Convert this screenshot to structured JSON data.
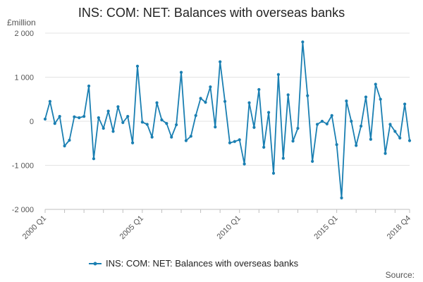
{
  "chart_data": {
    "type": "line",
    "title": "INS: COM: NET: Balances with overseas banks",
    "ylabel": "£million",
    "xlabel": "",
    "ylim": [
      -2000,
      2000
    ],
    "yticks": [
      -2000,
      -1000,
      0,
      1000,
      2000
    ],
    "ytick_labels": [
      "-2 000",
      "-1 000",
      "0",
      "1 000",
      "2 000"
    ],
    "x_tick_positions": [
      0,
      20,
      40,
      60,
      75
    ],
    "x_tick_labels": [
      "2000 Q1",
      "2005 Q1",
      "2010 Q1",
      "2015 Q1",
      "2018 Q4"
    ],
    "x_minor_tick_positions": [
      0,
      4,
      8,
      12,
      16,
      20,
      24,
      28,
      32,
      36,
      40,
      44,
      48,
      52,
      56,
      60,
      64,
      68,
      72,
      75
    ],
    "grid": "horizontal",
    "legend": {
      "position": "bottom",
      "entries": [
        "INS: COM: NET: Balances with overseas banks"
      ]
    },
    "series": [
      {
        "name": "INS: COM: NET: Balances with overseas banks",
        "color": "#1a7fb2",
        "x": [
          0,
          1,
          2,
          3,
          4,
          5,
          6,
          7,
          8,
          9,
          10,
          11,
          12,
          13,
          14,
          15,
          16,
          17,
          18,
          19,
          20,
          21,
          22,
          23,
          24,
          25,
          26,
          27,
          28,
          29,
          30,
          31,
          32,
          33,
          34,
          35,
          36,
          37,
          38,
          39,
          40,
          41,
          42,
          43,
          44,
          45,
          46,
          47,
          48,
          49,
          50,
          51,
          52,
          53,
          54,
          55,
          56,
          57,
          58,
          59,
          60,
          61,
          62,
          63,
          64,
          65,
          66,
          67,
          68,
          69,
          70,
          71,
          72,
          73,
          74,
          75
        ],
        "values": [
          50,
          450,
          -50,
          110,
          -560,
          -430,
          100,
          80,
          110,
          800,
          -850,
          80,
          -160,
          230,
          -230,
          330,
          -30,
          110,
          -490,
          1250,
          -20,
          -70,
          -360,
          420,
          30,
          -50,
          -360,
          -80,
          1110,
          -440,
          -340,
          130,
          520,
          430,
          780,
          -130,
          1350,
          450,
          -490,
          -460,
          -420,
          -970,
          420,
          -140,
          720,
          -590,
          200,
          -1180,
          1060,
          -840,
          600,
          -450,
          -160,
          1800,
          580,
          -910,
          -70,
          0,
          -60,
          130,
          -530,
          -1740,
          460,
          0,
          -550,
          -110,
          550,
          -410,
          840,
          500,
          -730,
          -70,
          -230,
          -380,
          390,
          -440
        ]
      }
    ],
    "source_label": "Source:"
  }
}
